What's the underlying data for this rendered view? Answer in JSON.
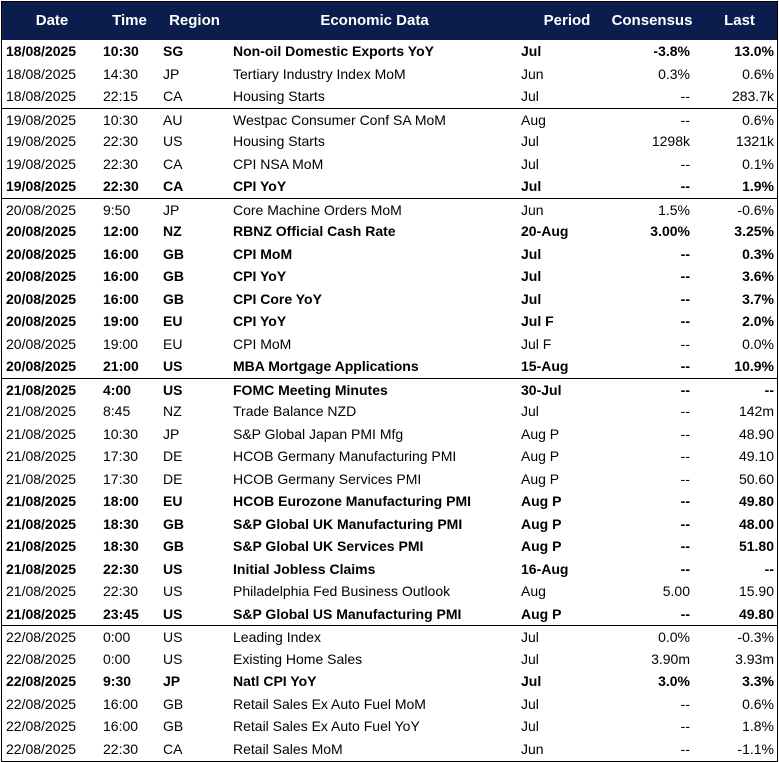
{
  "table": {
    "columns": [
      "Date",
      "Time",
      "Region",
      "Economic Data",
      "Period",
      "Consensus",
      "Last"
    ],
    "rows": [
      {
        "bold": true,
        "cells": [
          "18/08/2025",
          "10:30",
          "SG",
          "Non-oil Domestic Exports YoY",
          "Jul",
          "-3.8%",
          "13.0%"
        ]
      },
      {
        "bold": false,
        "cells": [
          "18/08/2025",
          "14:30",
          "JP",
          "Tertiary Industry Index MoM",
          "Jun",
          "0.3%",
          "0.6%"
        ]
      },
      {
        "bold": false,
        "cells": [
          "18/08/2025",
          "22:15",
          "CA",
          "Housing Starts",
          "Jul",
          "--",
          "283.7k"
        ]
      },
      {
        "bold": false,
        "cells": [
          "19/08/2025",
          "10:30",
          "AU",
          "Westpac Consumer Conf SA MoM",
          "Aug",
          "--",
          "0.6%"
        ]
      },
      {
        "bold": false,
        "cells": [
          "19/08/2025",
          "22:30",
          "US",
          "Housing Starts",
          "Jul",
          "1298k",
          "1321k"
        ]
      },
      {
        "bold": false,
        "cells": [
          "19/08/2025",
          "22:30",
          "CA",
          "CPI NSA MoM",
          "Jul",
          "--",
          "0.1%"
        ]
      },
      {
        "bold": true,
        "cells": [
          "19/08/2025",
          "22:30",
          "CA",
          "CPI YoY",
          "Jul",
          "--",
          "1.9%"
        ]
      },
      {
        "bold": false,
        "cells": [
          "20/08/2025",
          "9:50",
          "JP",
          "Core Machine Orders MoM",
          "Jun",
          "1.5%",
          "-0.6%"
        ]
      },
      {
        "bold": true,
        "cells": [
          "20/08/2025",
          "12:00",
          "NZ",
          "RBNZ Official Cash Rate",
          "20-Aug",
          "3.00%",
          "3.25%"
        ]
      },
      {
        "bold": true,
        "cells": [
          "20/08/2025",
          "16:00",
          "GB",
          "CPI MoM",
          "Jul",
          "--",
          "0.3%"
        ]
      },
      {
        "bold": true,
        "cells": [
          "20/08/2025",
          "16:00",
          "GB",
          "CPI YoY",
          "Jul",
          "--",
          "3.6%"
        ]
      },
      {
        "bold": true,
        "cells": [
          "20/08/2025",
          "16:00",
          "GB",
          "CPI Core YoY",
          "Jul",
          "--",
          "3.7%"
        ]
      },
      {
        "bold": true,
        "cells": [
          "20/08/2025",
          "19:00",
          "EU",
          "CPI YoY",
          "Jul F",
          "--",
          "2.0%"
        ]
      },
      {
        "bold": false,
        "cells": [
          "20/08/2025",
          "19:00",
          "EU",
          "CPI MoM",
          "Jul F",
          "--",
          "0.0%"
        ]
      },
      {
        "bold": true,
        "cells": [
          "20/08/2025",
          "21:00",
          "US",
          "MBA Mortgage Applications",
          "15-Aug",
          "--",
          "10.9%"
        ]
      },
      {
        "bold": true,
        "cells": [
          "21/08/2025",
          "4:00",
          "US",
          "FOMC Meeting Minutes",
          "30-Jul",
          "--",
          "--"
        ]
      },
      {
        "bold": false,
        "cells": [
          "21/08/2025",
          "8:45",
          "NZ",
          "Trade Balance NZD",
          "Jul",
          "--",
          "142m"
        ]
      },
      {
        "bold": false,
        "cells": [
          "21/08/2025",
          "10:30",
          "JP",
          "S&P Global Japan PMI Mfg",
          "Aug P",
          "--",
          "48.90"
        ]
      },
      {
        "bold": false,
        "cells": [
          "21/08/2025",
          "17:30",
          "DE",
          "HCOB Germany Manufacturing PMI",
          "Aug P",
          "--",
          "49.10"
        ]
      },
      {
        "bold": false,
        "cells": [
          "21/08/2025",
          "17:30",
          "DE",
          "HCOB Germany Services PMI",
          "Aug P",
          "--",
          "50.60"
        ]
      },
      {
        "bold": true,
        "cells": [
          "21/08/2025",
          "18:00",
          "EU",
          "HCOB Eurozone Manufacturing PMI",
          "Aug P",
          "--",
          "49.80"
        ]
      },
      {
        "bold": true,
        "cells": [
          "21/08/2025",
          "18:30",
          "GB",
          "S&P Global UK Manufacturing PMI",
          "Aug P",
          "--",
          "48.00"
        ]
      },
      {
        "bold": true,
        "cells": [
          "21/08/2025",
          "18:30",
          "GB",
          "S&P Global UK Services PMI",
          "Aug P",
          "--",
          "51.80"
        ]
      },
      {
        "bold": true,
        "cells": [
          "21/08/2025",
          "22:30",
          "US",
          "Initial Jobless Claims",
          "16-Aug",
          "--",
          "--"
        ]
      },
      {
        "bold": false,
        "cells": [
          "21/08/2025",
          "22:30",
          "US",
          "Philadelphia Fed Business Outlook",
          "Aug",
          "5.00",
          "15.90"
        ]
      },
      {
        "bold": true,
        "cells": [
          "21/08/2025",
          "23:45",
          "US",
          "S&P Global US Manufacturing PMI",
          "Aug P",
          "--",
          "49.80"
        ]
      },
      {
        "bold": false,
        "cells": [
          "22/08/2025",
          "0:00",
          "US",
          "Leading Index",
          "Jul",
          "0.0%",
          "-0.3%"
        ]
      },
      {
        "bold": false,
        "cells": [
          "22/08/2025",
          "0:00",
          "US",
          "Existing Home Sales",
          "Jul",
          "3.90m",
          "3.93m"
        ]
      },
      {
        "bold": true,
        "cells": [
          "22/08/2025",
          "9:30",
          "JP",
          "Natl CPI YoY",
          "Jul",
          "3.0%",
          "3.3%"
        ]
      },
      {
        "bold": false,
        "cells": [
          "22/08/2025",
          "16:00",
          "GB",
          "Retail Sales Ex Auto Fuel MoM",
          "Jul",
          "--",
          "0.6%"
        ]
      },
      {
        "bold": false,
        "cells": [
          "22/08/2025",
          "16:00",
          "GB",
          "Retail Sales Ex Auto Fuel YoY",
          "Jul",
          "--",
          "1.8%"
        ]
      },
      {
        "bold": false,
        "cells": [
          "22/08/2025",
          "22:30",
          "CA",
          "Retail Sales MoM",
          "Jun",
          "--",
          "-1.1%"
        ]
      }
    ]
  }
}
